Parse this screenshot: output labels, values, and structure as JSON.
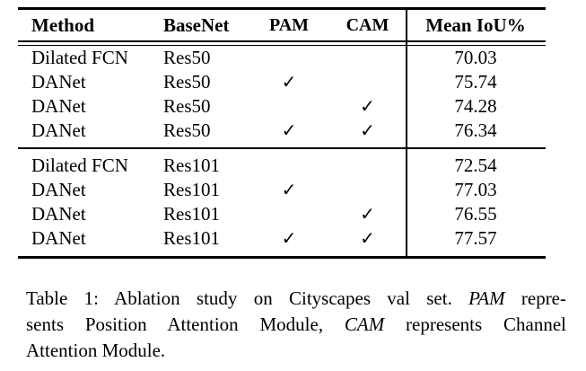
{
  "page": {
    "background": "#ffffff",
    "text_color": "#000000",
    "rule_color": "#000000"
  },
  "table": {
    "header": {
      "method": "Method",
      "basenet": "BaseNet",
      "pam": "PAM",
      "cam": "CAM",
      "mean_iou": "Mean IoU%"
    },
    "checkmark_glyph": "✓",
    "groups": [
      {
        "rows": [
          {
            "method": "Dilated FCN",
            "basenet": "Res50",
            "pam": false,
            "cam": false,
            "mean_iou": "70.03"
          },
          {
            "method": "DANet",
            "basenet": "Res50",
            "pam": true,
            "cam": false,
            "mean_iou": "75.74"
          },
          {
            "method": "DANet",
            "basenet": "Res50",
            "pam": false,
            "cam": true,
            "mean_iou": "74.28"
          },
          {
            "method": "DANet",
            "basenet": "Res50",
            "pam": true,
            "cam": true,
            "mean_iou": "76.34"
          }
        ]
      },
      {
        "rows": [
          {
            "method": "Dilated FCN",
            "basenet": "Res101",
            "pam": false,
            "cam": false,
            "mean_iou": "72.54"
          },
          {
            "method": "DANet",
            "basenet": "Res101",
            "pam": true,
            "cam": false,
            "mean_iou": "77.03"
          },
          {
            "method": "DANet",
            "basenet": "Res101",
            "pam": false,
            "cam": true,
            "mean_iou": "76.55"
          },
          {
            "method": "DANet",
            "basenet": "Res101",
            "pam": true,
            "cam": true,
            "mean_iou": "77.57"
          }
        ]
      }
    ]
  },
  "caption": {
    "line1_normal": "Table 1: Ablation study on Cityscapes val set. ",
    "line1_italic": "PAM",
    "line1_rest": " repre-",
    "line2_normal": "sents Position Attention Module, ",
    "line2_italic": "CAM",
    "line2_rest": " represents Channel",
    "line3": "Attention Module."
  }
}
